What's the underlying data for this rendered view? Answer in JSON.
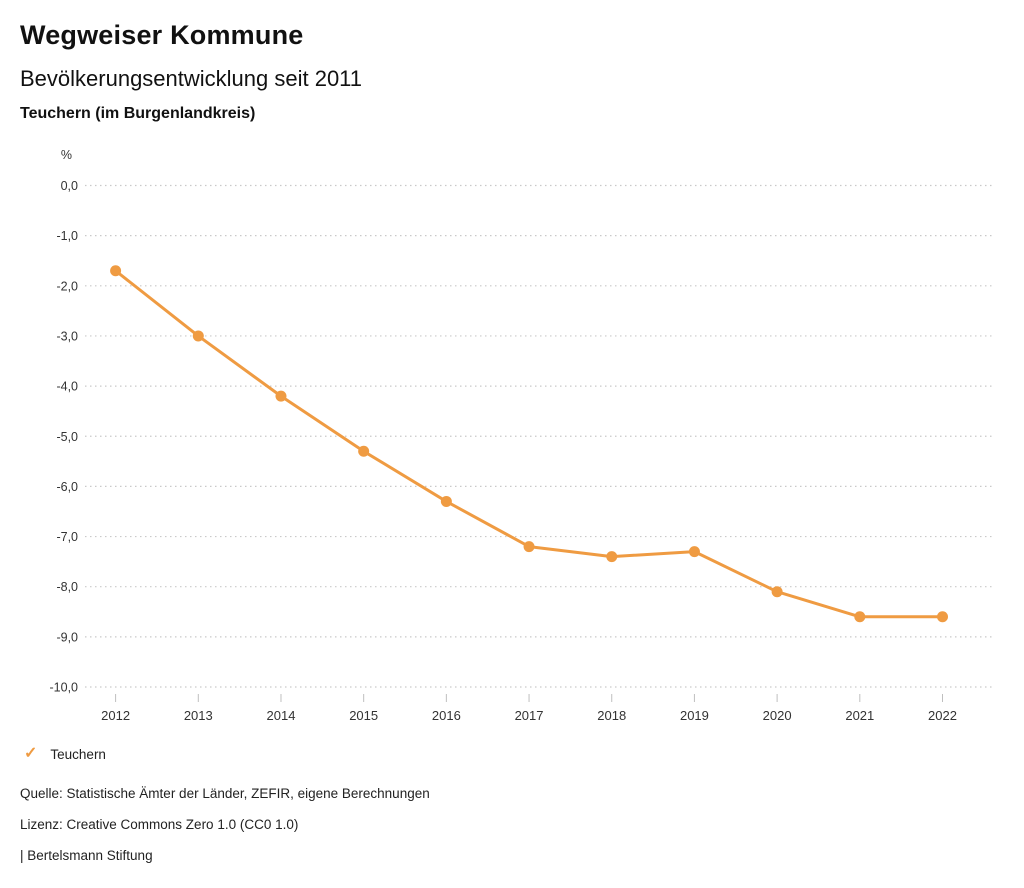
{
  "header": {
    "title": "Wegweiser Kommune",
    "subtitle": "Bevölkerungsentwicklung seit 2011",
    "region": "Teuchern (im Burgenlandkreis)"
  },
  "chart_data": {
    "type": "line",
    "title": "Bevölkerungsentwicklung seit 2011 — Teuchern (im Burgenlandkreis)",
    "unit_label": "%",
    "xlabel": "",
    "ylabel": "%",
    "categories": [
      "2012",
      "2013",
      "2014",
      "2015",
      "2016",
      "2017",
      "2018",
      "2019",
      "2020",
      "2021",
      "2022"
    ],
    "series": [
      {
        "name": "Teuchern",
        "values": [
          -1.7,
          -3.0,
          -4.2,
          -5.3,
          -6.3,
          -7.2,
          -7.4,
          -7.3,
          -8.1,
          -8.6,
          -8.6
        ]
      }
    ],
    "ylim": [
      -10.0,
      0.0
    ],
    "y_ticks": [
      {
        "value": 0,
        "label": "0,0"
      },
      {
        "value": -1,
        "label": "-1,0"
      },
      {
        "value": -2,
        "label": "-2,0"
      },
      {
        "value": -3,
        "label": "-3,0"
      },
      {
        "value": -4,
        "label": "-4,0"
      },
      {
        "value": -5,
        "label": "-5,0"
      },
      {
        "value": -6,
        "label": "-6,0"
      },
      {
        "value": -7,
        "label": "-7,0"
      },
      {
        "value": -8,
        "label": "-8,0"
      },
      {
        "value": -9,
        "label": "-9,0"
      },
      {
        "value": -10,
        "label": "-10,0"
      }
    ],
    "grid": "horizontal-dotted",
    "legend_position": "bottom-left"
  },
  "legend": {
    "check_icon": "✓",
    "label": "Teuchern"
  },
  "footer": {
    "source": "Quelle: Statistische Ämter der Länder, ZEFIR, eigene Berechnungen",
    "license": "Lizenz: Creative Commons Zero 1.0 (CC0 1.0)",
    "attribution": "| Bertelsmann Stiftung"
  },
  "colors": {
    "accent": "#EF9B42",
    "grid": "#c9c9c9",
    "tick": "#bfbfbf",
    "axis_text": "#333333",
    "text": "#111111"
  }
}
